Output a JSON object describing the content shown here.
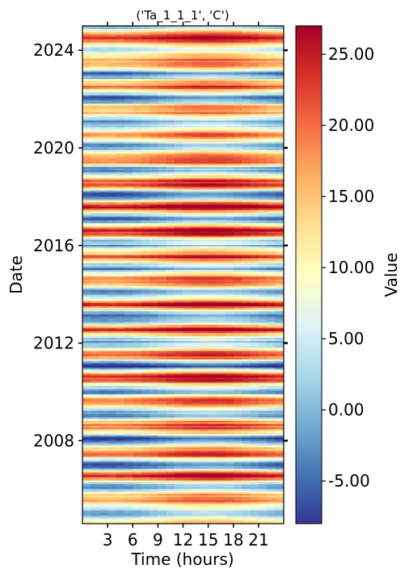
{
  "chart_data": {
    "type": "heatmap",
    "title": "('Ta_1_1_1', 'C')",
    "xlabel": "Time (hours)",
    "ylabel": "Date",
    "colorbar_label": "Value",
    "x_tick_labels": [
      "3",
      "6",
      "9",
      "12",
      "15",
      "18",
      "21"
    ],
    "x_ticks": [
      3,
      6,
      9,
      12,
      15,
      18,
      21
    ],
    "xlim": [
      0,
      24
    ],
    "y_tick_labels": [
      "2008",
      "2012",
      "2016",
      "2020",
      "2024"
    ],
    "y_ticks": [
      2008,
      2012,
      2016,
      2020,
      2024
    ],
    "ylim": [
      2004.6,
      2025.0
    ],
    "color_range": [
      -8,
      27
    ],
    "colorbar_tick_labels": [
      "-5.00",
      "0.00",
      "5.00",
      "10.00",
      "15.00",
      "20.00",
      "25.00"
    ],
    "colorbar_ticks": [
      -5,
      0,
      5,
      10,
      15,
      20,
      25
    ],
    "colormap": "RdYlBu_r",
    "colormap_stops": [
      "#313695",
      "#4575b4",
      "#74add1",
      "#abd9e9",
      "#e0f3f8",
      "#ffffbf",
      "#fee090",
      "#fdae61",
      "#f46d43",
      "#d73027",
      "#a50026"
    ],
    "series_description": "daily mean values vary seasonally with summer peaks near 20-25 and winter troughs near -5; afternoon hours warmer than night hours"
  }
}
